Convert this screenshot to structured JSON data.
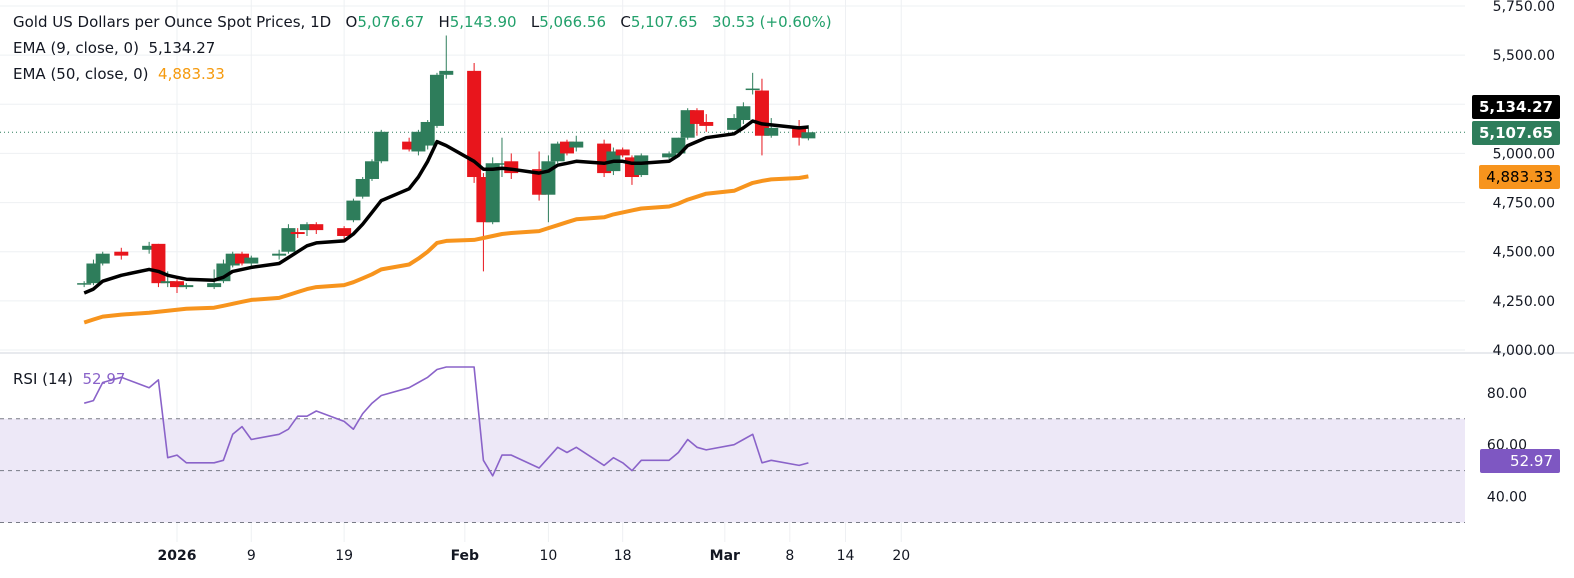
{
  "header": {
    "symbol": "Gold US Dollars per Ounce Spot Prices, 1D",
    "open_label": "O",
    "open": "5,076.67",
    "high_label": "H",
    "high": "5,143.90",
    "low_label": "L",
    "low": "5,066.56",
    "close_label": "C",
    "close": "5,107.65",
    "change": "30.53 (+0.60%)"
  },
  "indicators": {
    "ema9_label": "EMA (9, close, 0)",
    "ema9_value": "5,134.27",
    "ema50_label": "EMA (50, close, 0)",
    "ema50_value": "4,883.33",
    "rsi_label": "RSI (14)",
    "rsi_value": "52.97"
  },
  "price_tags": {
    "ema9": "5,134.27",
    "last_close": "5,107.65",
    "ema50": "4,883.33",
    "rsi": "52.97"
  },
  "colors": {
    "up": "#2e7d5b",
    "down": "#e8151c",
    "ema9": "#000000",
    "ema50": "#f7941d",
    "rsi": "#8a63c9",
    "rsi_band": "#ede8f7",
    "grid": "#eef0f3"
  },
  "chart_data": [
    {
      "type": "candlestick",
      "title": "Gold US Dollars per Ounce Spot Prices, 1D",
      "ylim": [
        4000,
        5750
      ],
      "y_ticks": [
        "4,000.00",
        "4,250.00",
        "4,500.00",
        "4,750.00",
        "5,000.00",
        "5,250.00",
        "5,500.00",
        "5,750.00"
      ],
      "x_ticks": [
        "2026",
        "9",
        "19",
        "Feb",
        "10",
        "18",
        "Mar",
        "8",
        "14",
        "20"
      ],
      "x_tick_dates": [
        "2026-01-01",
        "2026-01-09",
        "2026-01-19",
        "2026-02-01",
        "2026-02-10",
        "2026-02-18",
        "2026-03-01",
        "2026-03-08",
        "2026-03-14",
        "2026-03-20"
      ],
      "grid": true,
      "candles": [
        {
          "date": "2025-12-22",
          "o": 4340,
          "h": 4350,
          "l": 4320,
          "c": 4340
        },
        {
          "date": "2025-12-23",
          "o": 4340,
          "h": 4460,
          "l": 4330,
          "c": 4440
        },
        {
          "date": "2025-12-24",
          "o": 4440,
          "h": 4500,
          "l": 4430,
          "c": 4490
        },
        {
          "date": "2025-12-26",
          "o": 4500,
          "h": 4520,
          "l": 4460,
          "c": 4480
        },
        {
          "date": "2025-12-29",
          "o": 4510,
          "h": 4550,
          "l": 4490,
          "c": 4530
        },
        {
          "date": "2025-12-30",
          "o": 4540,
          "h": 4540,
          "l": 4320,
          "c": 4340
        },
        {
          "date": "2025-12-31",
          "o": 4340,
          "h": 4400,
          "l": 4320,
          "c": 4350
        },
        {
          "date": "2026-01-01",
          "o": 4350,
          "h": 4360,
          "l": 4290,
          "c": 4320
        },
        {
          "date": "2026-01-02",
          "o": 4320,
          "h": 4340,
          "l": 4310,
          "c": 4330
        },
        {
          "date": "2026-01-05",
          "o": 4320,
          "h": 4410,
          "l": 4310,
          "c": 4340
        },
        {
          "date": "2026-01-06",
          "o": 4350,
          "h": 4460,
          "l": 4340,
          "c": 4440
        },
        {
          "date": "2026-01-07",
          "o": 4430,
          "h": 4500,
          "l": 4420,
          "c": 4490
        },
        {
          "date": "2026-01-08",
          "o": 4490,
          "h": 4500,
          "l": 4430,
          "c": 4440
        },
        {
          "date": "2026-01-09",
          "o": 4440,
          "h": 4480,
          "l": 4420,
          "c": 4470
        },
        {
          "date": "2026-01-12",
          "o": 4480,
          "h": 4510,
          "l": 4460,
          "c": 4490
        },
        {
          "date": "2026-01-13",
          "o": 4500,
          "h": 4640,
          "l": 4490,
          "c": 4620
        },
        {
          "date": "2026-01-14",
          "o": 4600,
          "h": 4620,
          "l": 4570,
          "c": 4590
        },
        {
          "date": "2026-01-15",
          "o": 4610,
          "h": 4650,
          "l": 4580,
          "c": 4640
        },
        {
          "date": "2026-01-16",
          "o": 4640,
          "h": 4650,
          "l": 4590,
          "c": 4610
        },
        {
          "date": "2026-01-19",
          "o": 4620,
          "h": 4630,
          "l": 4560,
          "c": 4580
        },
        {
          "date": "2026-01-20",
          "o": 4660,
          "h": 4770,
          "l": 4650,
          "c": 4760
        },
        {
          "date": "2026-01-21",
          "o": 4780,
          "h": 4880,
          "l": 4770,
          "c": 4870
        },
        {
          "date": "2026-01-22",
          "o": 4870,
          "h": 4970,
          "l": 4860,
          "c": 4960
        },
        {
          "date": "2026-01-23",
          "o": 4960,
          "h": 5120,
          "l": 4950,
          "c": 5110
        },
        {
          "date": "2026-01-26",
          "o": 5060,
          "h": 5080,
          "l": 5010,
          "c": 5020
        },
        {
          "date": "2026-01-27",
          "o": 5010,
          "h": 5120,
          "l": 4990,
          "c": 5110
        },
        {
          "date": "2026-01-28",
          "o": 5040,
          "h": 5170,
          "l": 5020,
          "c": 5160
        },
        {
          "date": "2026-01-29",
          "o": 5140,
          "h": 5410,
          "l": 5130,
          "c": 5400
        },
        {
          "date": "2026-01-30",
          "o": 5400,
          "h": 5600,
          "l": 5380,
          "c": 5420
        },
        {
          "date": "2026-02-02",
          "o": 5420,
          "h": 5460,
          "l": 4850,
          "c": 4880
        },
        {
          "date": "2026-02-03",
          "o": 4880,
          "h": 4900,
          "l": 4400,
          "c": 4650
        },
        {
          "date": "2026-02-04",
          "o": 4650,
          "h": 4980,
          "l": 4640,
          "c": 4950
        },
        {
          "date": "2026-02-05",
          "o": 4950,
          "h": 5080,
          "l": 4880,
          "c": 4950
        },
        {
          "date": "2026-02-06",
          "o": 4960,
          "h": 5000,
          "l": 4870,
          "c": 4900
        },
        {
          "date": "2026-02-09",
          "o": 4920,
          "h": 5010,
          "l": 4760,
          "c": 4790
        },
        {
          "date": "2026-02-10",
          "o": 4790,
          "h": 4990,
          "l": 4650,
          "c": 4960
        },
        {
          "date": "2026-02-11",
          "o": 4960,
          "h": 5060,
          "l": 4950,
          "c": 5050
        },
        {
          "date": "2026-02-12",
          "o": 5060,
          "h": 5070,
          "l": 4990,
          "c": 5000
        },
        {
          "date": "2026-02-13",
          "o": 5030,
          "h": 5090,
          "l": 5010,
          "c": 5060
        },
        {
          "date": "2026-02-16",
          "o": 5050,
          "h": 5070,
          "l": 4880,
          "c": 4900
        },
        {
          "date": "2026-02-17",
          "o": 4910,
          "h": 5030,
          "l": 4890,
          "c": 5010
        },
        {
          "date": "2026-02-18",
          "o": 5020,
          "h": 5030,
          "l": 4980,
          "c": 4990
        },
        {
          "date": "2026-02-19",
          "o": 4980,
          "h": 4990,
          "l": 4840,
          "c": 4880
        },
        {
          "date": "2026-02-20",
          "o": 4890,
          "h": 5000,
          "l": 4880,
          "c": 4990
        },
        {
          "date": "2026-02-23",
          "o": 4980,
          "h": 5010,
          "l": 4970,
          "c": 5000
        },
        {
          "date": "2026-02-24",
          "o": 5000,
          "h": 5080,
          "l": 4990,
          "c": 5080
        },
        {
          "date": "2026-02-25",
          "o": 5080,
          "h": 5230,
          "l": 5070,
          "c": 5220
        },
        {
          "date": "2026-02-26",
          "o": 5220,
          "h": 5230,
          "l": 5090,
          "c": 5150
        },
        {
          "date": "2026-02-27",
          "o": 5160,
          "h": 5200,
          "l": 5110,
          "c": 5140
        },
        {
          "date": "2026-03-02",
          "o": 5120,
          "h": 5200,
          "l": 5120,
          "c": 5180
        },
        {
          "date": "2026-03-03",
          "o": 5170,
          "h": 5260,
          "l": 5150,
          "c": 5240
        },
        {
          "date": "2026-03-04",
          "o": 5330,
          "h": 5410,
          "l": 5300,
          "c": 5330
        },
        {
          "date": "2026-03-05",
          "o": 5320,
          "h": 5380,
          "l": 4990,
          "c": 5090
        },
        {
          "date": "2026-03-06",
          "o": 5090,
          "h": 5180,
          "l": 5080,
          "c": 5130
        },
        {
          "date": "2026-03-09",
          "o": 5130,
          "h": 5170,
          "l": 5040,
          "c": 5080
        },
        {
          "date": "2026-03-10",
          "o": 5076.67,
          "h": 5143.9,
          "l": 5066.56,
          "c": 5107.65
        }
      ],
      "ema9": [
        4290,
        4310,
        4350,
        4380,
        4410,
        4400,
        4380,
        4370,
        4360,
        4355,
        4370,
        4400,
        4410,
        4420,
        4440,
        4470,
        4500,
        4530,
        4545,
        4555,
        4590,
        4640,
        4700,
        4760,
        4820,
        4880,
        4960,
        5060,
        5040,
        4960,
        4920,
        4920,
        4925,
        4920,
        4900,
        4910,
        4940,
        4950,
        4960,
        4950,
        4960,
        4960,
        4950,
        4950,
        4960,
        4990,
        5040,
        5060,
        5080,
        5100,
        5130,
        5165,
        5150,
        5145,
        5130,
        5134.27
      ],
      "ema50": [
        4140,
        4155,
        4170,
        4180,
        4190,
        4195,
        4200,
        4205,
        4210,
        4215,
        4225,
        4235,
        4245,
        4255,
        4265,
        4280,
        4295,
        4310,
        4320,
        4330,
        4345,
        4365,
        4385,
        4410,
        4435,
        4465,
        4500,
        4545,
        4555,
        4560,
        4570,
        4580,
        4590,
        4595,
        4605,
        4620,
        4635,
        4650,
        4665,
        4675,
        4690,
        4700,
        4710,
        4720,
        4730,
        4745,
        4765,
        4780,
        4795,
        4810,
        4830,
        4850,
        4860,
        4868,
        4875,
        4883.33
      ]
    },
    {
      "type": "line",
      "title": "RSI (14)",
      "ylim": [
        24,
        95
      ],
      "y_ticks": [
        "40.00",
        "60.00",
        "80.00"
      ],
      "bands": [
        30,
        50,
        70
      ],
      "series": [
        {
          "name": "RSI (14)",
          "values": [
            76,
            77,
            84,
            86,
            82,
            85,
            55,
            56,
            53,
            53,
            54,
            64,
            67,
            62,
            64,
            66,
            71,
            71,
            73,
            69,
            66,
            72,
            76,
            79,
            82,
            84,
            86,
            89,
            90,
            90,
            54,
            48,
            56,
            56,
            51,
            55,
            59,
            57,
            59,
            52,
            55,
            53,
            50,
            54,
            54,
            57,
            62,
            59,
            58,
            60,
            62,
            64,
            53,
            54,
            52,
            52.97
          ]
        }
      ]
    }
  ]
}
